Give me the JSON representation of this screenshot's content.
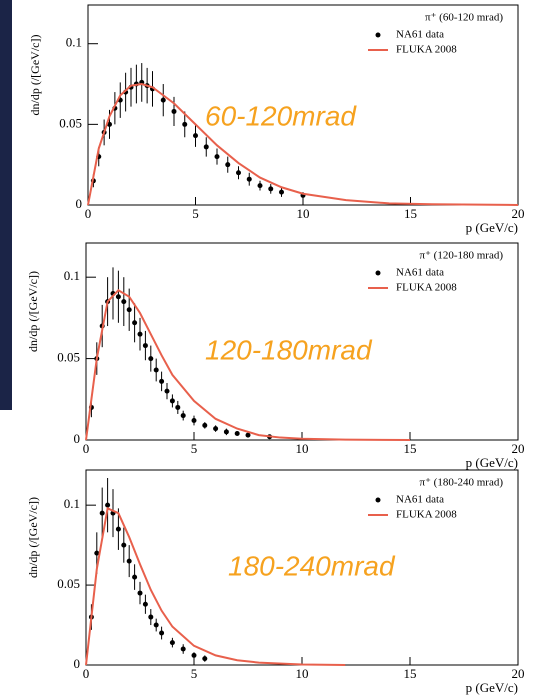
{
  "chart_data": [
    {
      "type": "errorbar",
      "xlabel": "p (GeV/c)",
      "ylabel": "dn/dp (/[GeV/c])",
      "legend_title": "π⁺ (60-120 mrad)",
      "annotation": "60-120mrad",
      "annotation_color": "#f6a21f",
      "xlim": [
        0,
        20
      ],
      "ylim": [
        0,
        0.124
      ],
      "xticks": [
        0,
        5,
        10,
        15,
        20
      ],
      "yticks": [
        0,
        0.05,
        0.1
      ],
      "series": [
        {
          "name": "NA61 data",
          "kind": "markers",
          "color": "#000000",
          "x": [
            0.25,
            0.5,
            0.75,
            1,
            1.25,
            1.5,
            1.75,
            2,
            2.25,
            2.5,
            2.75,
            3,
            3.5,
            4,
            4.5,
            5,
            5.5,
            6,
            6.5,
            7,
            7.5,
            8,
            8.5,
            9,
            10
          ],
          "values": [
            0.015,
            0.03,
            0.045,
            0.05,
            0.06,
            0.065,
            0.07,
            0.073,
            0.075,
            0.076,
            0.074,
            0.072,
            0.065,
            0.058,
            0.05,
            0.043,
            0.036,
            0.03,
            0.025,
            0.02,
            0.016,
            0.012,
            0.01,
            0.008,
            0.006
          ],
          "errors": [
            0.004,
            0.006,
            0.008,
            0.009,
            0.01,
            0.011,
            0.012,
            0.012,
            0.012,
            0.012,
            0.011,
            0.011,
            0.01,
            0.009,
            0.008,
            0.007,
            0.006,
            0.005,
            0.005,
            0.004,
            0.004,
            0.003,
            0.003,
            0.003,
            0.002
          ]
        },
        {
          "name": "FLUKA 2008",
          "kind": "line",
          "color": "#e8604c",
          "x": [
            0,
            0.5,
            1,
            1.5,
            2,
            2.5,
            3,
            4,
            5,
            6,
            7,
            8,
            9,
            10,
            12,
            14,
            16,
            20
          ],
          "values": [
            0,
            0.035,
            0.055,
            0.068,
            0.074,
            0.075,
            0.073,
            0.063,
            0.05,
            0.037,
            0.026,
            0.017,
            0.011,
            0.007,
            0.003,
            0.001,
            0.0005,
            0
          ]
        }
      ]
    },
    {
      "type": "errorbar",
      "xlabel": "p (GeV/c)",
      "ylabel": "dn/dp (/[GeV/c])",
      "legend_title": "π⁺ (120-180 mrad)",
      "annotation": "120-180mrad",
      "annotation_color": "#f6a21f",
      "xlim": [
        0,
        20
      ],
      "ylim": [
        0,
        0.121
      ],
      "xticks": [
        0,
        5,
        10,
        15,
        20
      ],
      "yticks": [
        0,
        0.05,
        0.1
      ],
      "series": [
        {
          "name": "NA61 data",
          "kind": "markers",
          "color": "#000000",
          "x": [
            0.25,
            0.5,
            0.75,
            1,
            1.25,
            1.5,
            1.75,
            2,
            2.25,
            2.5,
            2.75,
            3,
            3.25,
            3.5,
            3.75,
            4,
            4.25,
            4.5,
            5,
            5.5,
            6,
            6.5,
            7,
            7.5,
            8.5
          ],
          "values": [
            0.02,
            0.05,
            0.07,
            0.085,
            0.09,
            0.088,
            0.085,
            0.08,
            0.072,
            0.065,
            0.058,
            0.05,
            0.043,
            0.036,
            0.03,
            0.024,
            0.02,
            0.015,
            0.012,
            0.009,
            0.007,
            0.005,
            0.004,
            0.003,
            0.002
          ],
          "errors": [
            0.006,
            0.01,
            0.013,
            0.015,
            0.016,
            0.016,
            0.015,
            0.013,
            0.012,
            0.01,
            0.009,
            0.008,
            0.007,
            0.006,
            0.005,
            0.004,
            0.004,
            0.003,
            0.003,
            0.002,
            0.002,
            0.002,
            0.001,
            0.001,
            0.001
          ]
        },
        {
          "name": "FLUKA 2008",
          "kind": "line",
          "color": "#e8604c",
          "x": [
            0,
            0.5,
            1,
            1.5,
            2,
            2.5,
            3,
            3.5,
            4,
            5,
            6,
            7,
            8,
            9,
            10,
            12,
            15
          ],
          "values": [
            0,
            0.05,
            0.085,
            0.092,
            0.088,
            0.078,
            0.065,
            0.052,
            0.04,
            0.024,
            0.013,
            0.007,
            0.003,
            0.0015,
            0.0008,
            0.0002,
            0
          ]
        }
      ]
    },
    {
      "type": "errorbar",
      "xlabel": "p (GeV/c)",
      "ylabel": "dn/dp (/[GeV/c])",
      "legend_title": "π⁺ (180-240 mrad)",
      "annotation": "180-240mrad",
      "annotation_color": "#f6a21f",
      "xlim": [
        0,
        20
      ],
      "ylim": [
        0,
        0.122
      ],
      "xticks": [
        0,
        5,
        10,
        15,
        20
      ],
      "yticks": [
        0,
        0.05,
        0.1
      ],
      "series": [
        {
          "name": "NA61 data",
          "kind": "markers",
          "color": "#000000",
          "x": [
            0.25,
            0.5,
            0.75,
            1,
            1.25,
            1.5,
            1.75,
            2,
            2.25,
            2.5,
            2.75,
            3,
            3.25,
            3.5,
            4,
            4.5,
            5,
            5.5
          ],
          "values": [
            0.03,
            0.07,
            0.095,
            0.1,
            0.095,
            0.085,
            0.075,
            0.065,
            0.055,
            0.045,
            0.038,
            0.03,
            0.025,
            0.02,
            0.014,
            0.01,
            0.006,
            0.004
          ],
          "errors": [
            0.008,
            0.013,
            0.016,
            0.017,
            0.015,
            0.013,
            0.011,
            0.01,
            0.008,
            0.007,
            0.006,
            0.005,
            0.004,
            0.004,
            0.003,
            0.003,
            0.002,
            0.002
          ]
        },
        {
          "name": "FLUKA 2008",
          "kind": "line",
          "color": "#e8604c",
          "x": [
            0,
            0.5,
            1,
            1.5,
            2,
            2.5,
            3,
            3.5,
            4,
            5,
            6,
            7,
            8,
            10,
            12
          ],
          "values": [
            0,
            0.06,
            0.098,
            0.095,
            0.08,
            0.063,
            0.047,
            0.034,
            0.024,
            0.012,
            0.006,
            0.003,
            0.0015,
            0.0003,
            0
          ]
        }
      ]
    }
  ]
}
